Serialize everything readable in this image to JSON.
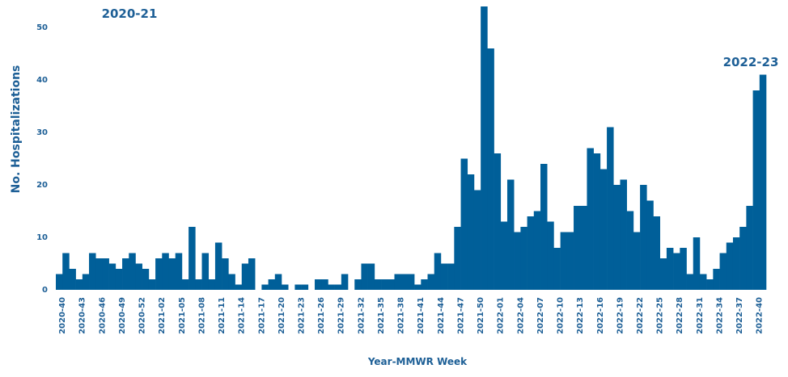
{
  "chart_data": {
    "type": "bar",
    "x_label": "Year-MMWR Week",
    "y_label": "No. Hospitalizations",
    "annotations": [
      "2020-21",
      "2022-23"
    ],
    "color": "#005f99",
    "ylim": [
      0,
      54
    ],
    "yticks": [
      0,
      10,
      20,
      30,
      40,
      50
    ],
    "categories": [
      "2020-40",
      null,
      null,
      "2020-43",
      null,
      null,
      "2020-46",
      null,
      null,
      "2020-49",
      null,
      null,
      "2020-52",
      null,
      null,
      "2021-02",
      null,
      null,
      "2021-05",
      null,
      null,
      "2021-08",
      null,
      null,
      "2021-11",
      null,
      null,
      "2021-14",
      null,
      null,
      "2021-17",
      null,
      null,
      "2021-20",
      null,
      null,
      "2021-23",
      null,
      null,
      "2021-26",
      null,
      null,
      "2021-29",
      null,
      null,
      "2021-32",
      null,
      null,
      "2021-35",
      null,
      null,
      "2021-38",
      null,
      null,
      "2021-41",
      null,
      null,
      "2021-44",
      null,
      null,
      "2021-47",
      null,
      null,
      "2021-50",
      null,
      null,
      "2022-01",
      null,
      null,
      "2022-04",
      null,
      null,
      "2022-07",
      null,
      null,
      "2022-10",
      null,
      null,
      "2022-13",
      null,
      null,
      "2022-16",
      null,
      null,
      "2022-19",
      null,
      null,
      "2022-22",
      null,
      null,
      "2022-25",
      null,
      null,
      "2022-28",
      null,
      null,
      "2022-31",
      null,
      null,
      "2022-34",
      null,
      null,
      "2022-37",
      null,
      null,
      "2022-40",
      null
    ],
    "values": [
      3,
      7,
      4,
      2,
      3,
      7,
      6,
      6,
      5,
      4,
      6,
      7,
      5,
      4,
      2,
      6,
      7,
      6,
      7,
      2,
      12,
      2,
      7,
      2,
      9,
      6,
      3,
      1,
      5,
      6,
      0,
      1,
      2,
      3,
      1,
      0,
      1,
      1,
      0,
      2,
      2,
      1,
      1,
      3,
      0,
      2,
      5,
      5,
      2,
      2,
      2,
      3,
      3,
      3,
      1,
      2,
      3,
      7,
      5,
      5,
      12,
      25,
      22,
      19,
      54,
      46,
      26,
      13,
      21,
      11,
      12,
      14,
      15,
      24,
      13,
      8,
      11,
      11,
      16,
      16,
      27,
      26,
      23,
      31,
      20,
      21,
      15,
      11,
      20,
      17,
      14,
      6,
      8,
      7,
      8,
      3,
      10,
      3,
      2,
      4,
      7,
      9,
      10,
      12,
      16,
      38,
      41
    ]
  }
}
